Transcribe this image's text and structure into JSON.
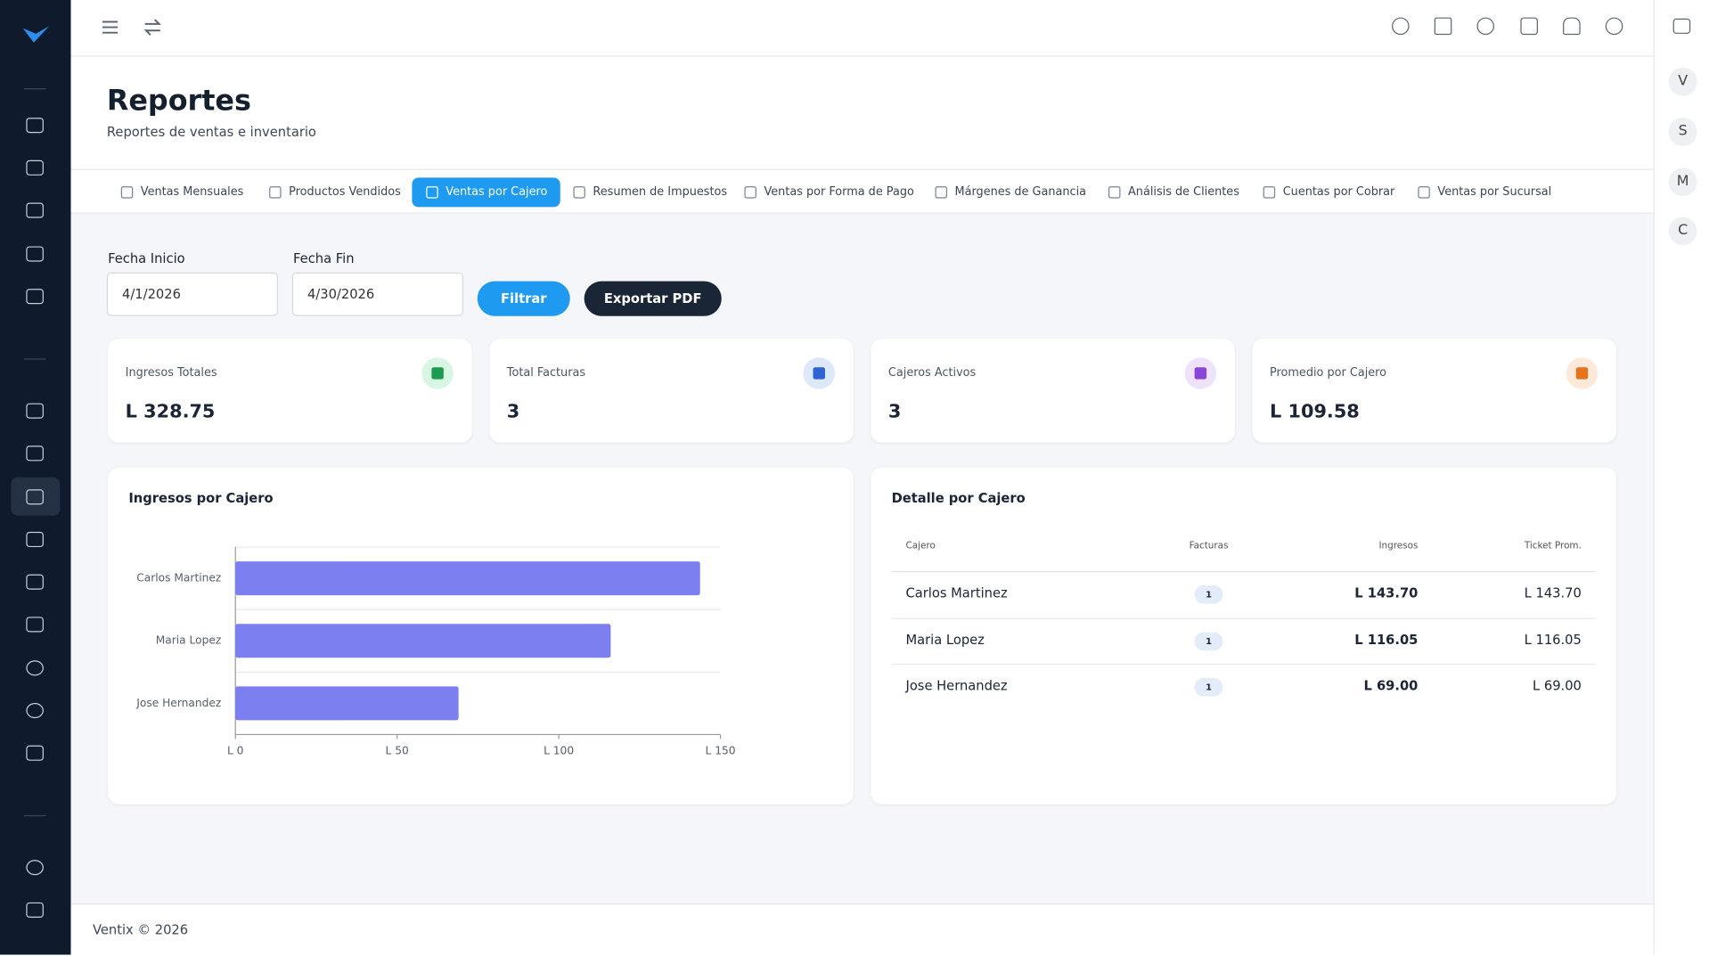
{
  "header": {
    "title": "Reportes",
    "subtitle": "Reportes de ventas e inventario"
  },
  "tabs": [
    "Ventas Mensuales",
    "Productos Vendidos",
    "Ventas por Cajero",
    "Resumen de Impuestos",
    "Ventas por Forma de Pago",
    "Márgenes de Ganancia",
    "Análisis de Clientes",
    "Cuentas por Cobrar",
    "Ventas por Sucursal"
  ],
  "filters": {
    "start_label": "Fecha Inicio",
    "start_value": "4/1/2026",
    "end_label": "Fecha Fin",
    "end_value": "4/30/2026",
    "filter_button": "Filtrar",
    "export_button": "Exportar PDF"
  },
  "cards": [
    {
      "label": "Ingresos Totales",
      "value": "L 328.75"
    },
    {
      "label": "Total Facturas",
      "value": "3"
    },
    {
      "label": "Cajeros Activos",
      "value": "3"
    },
    {
      "label": "Promedio por Cajero",
      "value": "L 109.58"
    }
  ],
  "chart_data": {
    "type": "bar",
    "orientation": "horizontal",
    "title": "Ingresos por Cajero",
    "categories": [
      "Carlos Martinez",
      "Maria Lopez",
      "Jose Hernandez"
    ],
    "values": [
      143.7,
      116.05,
      69.0
    ],
    "color": "#7b7ff0",
    "xlim": [
      0,
      150
    ],
    "xticks": [
      {
        "value": 0,
        "label": "L 0"
      },
      {
        "value": 50,
        "label": "L 50"
      },
      {
        "value": 100,
        "label": "L 100"
      },
      {
        "value": 150,
        "label": "L 150"
      }
    ],
    "grid": true
  },
  "table": {
    "title": "Detalle por Cajero",
    "columns": [
      "Cajero",
      "Facturas",
      "Ingresos",
      "Ticket Prom."
    ],
    "rows": [
      [
        "Carlos Martinez",
        1,
        "L 143.70",
        "L 143.70"
      ],
      [
        "Maria Lopez",
        1,
        "L 116.05",
        "L 116.05"
      ],
      [
        "Jose Hernandez",
        1,
        "L 69.00",
        "L 69.00"
      ]
    ]
  },
  "avatars": [
    "V",
    "S",
    "M",
    "C"
  ],
  "footer": "Ventix © 2026"
}
